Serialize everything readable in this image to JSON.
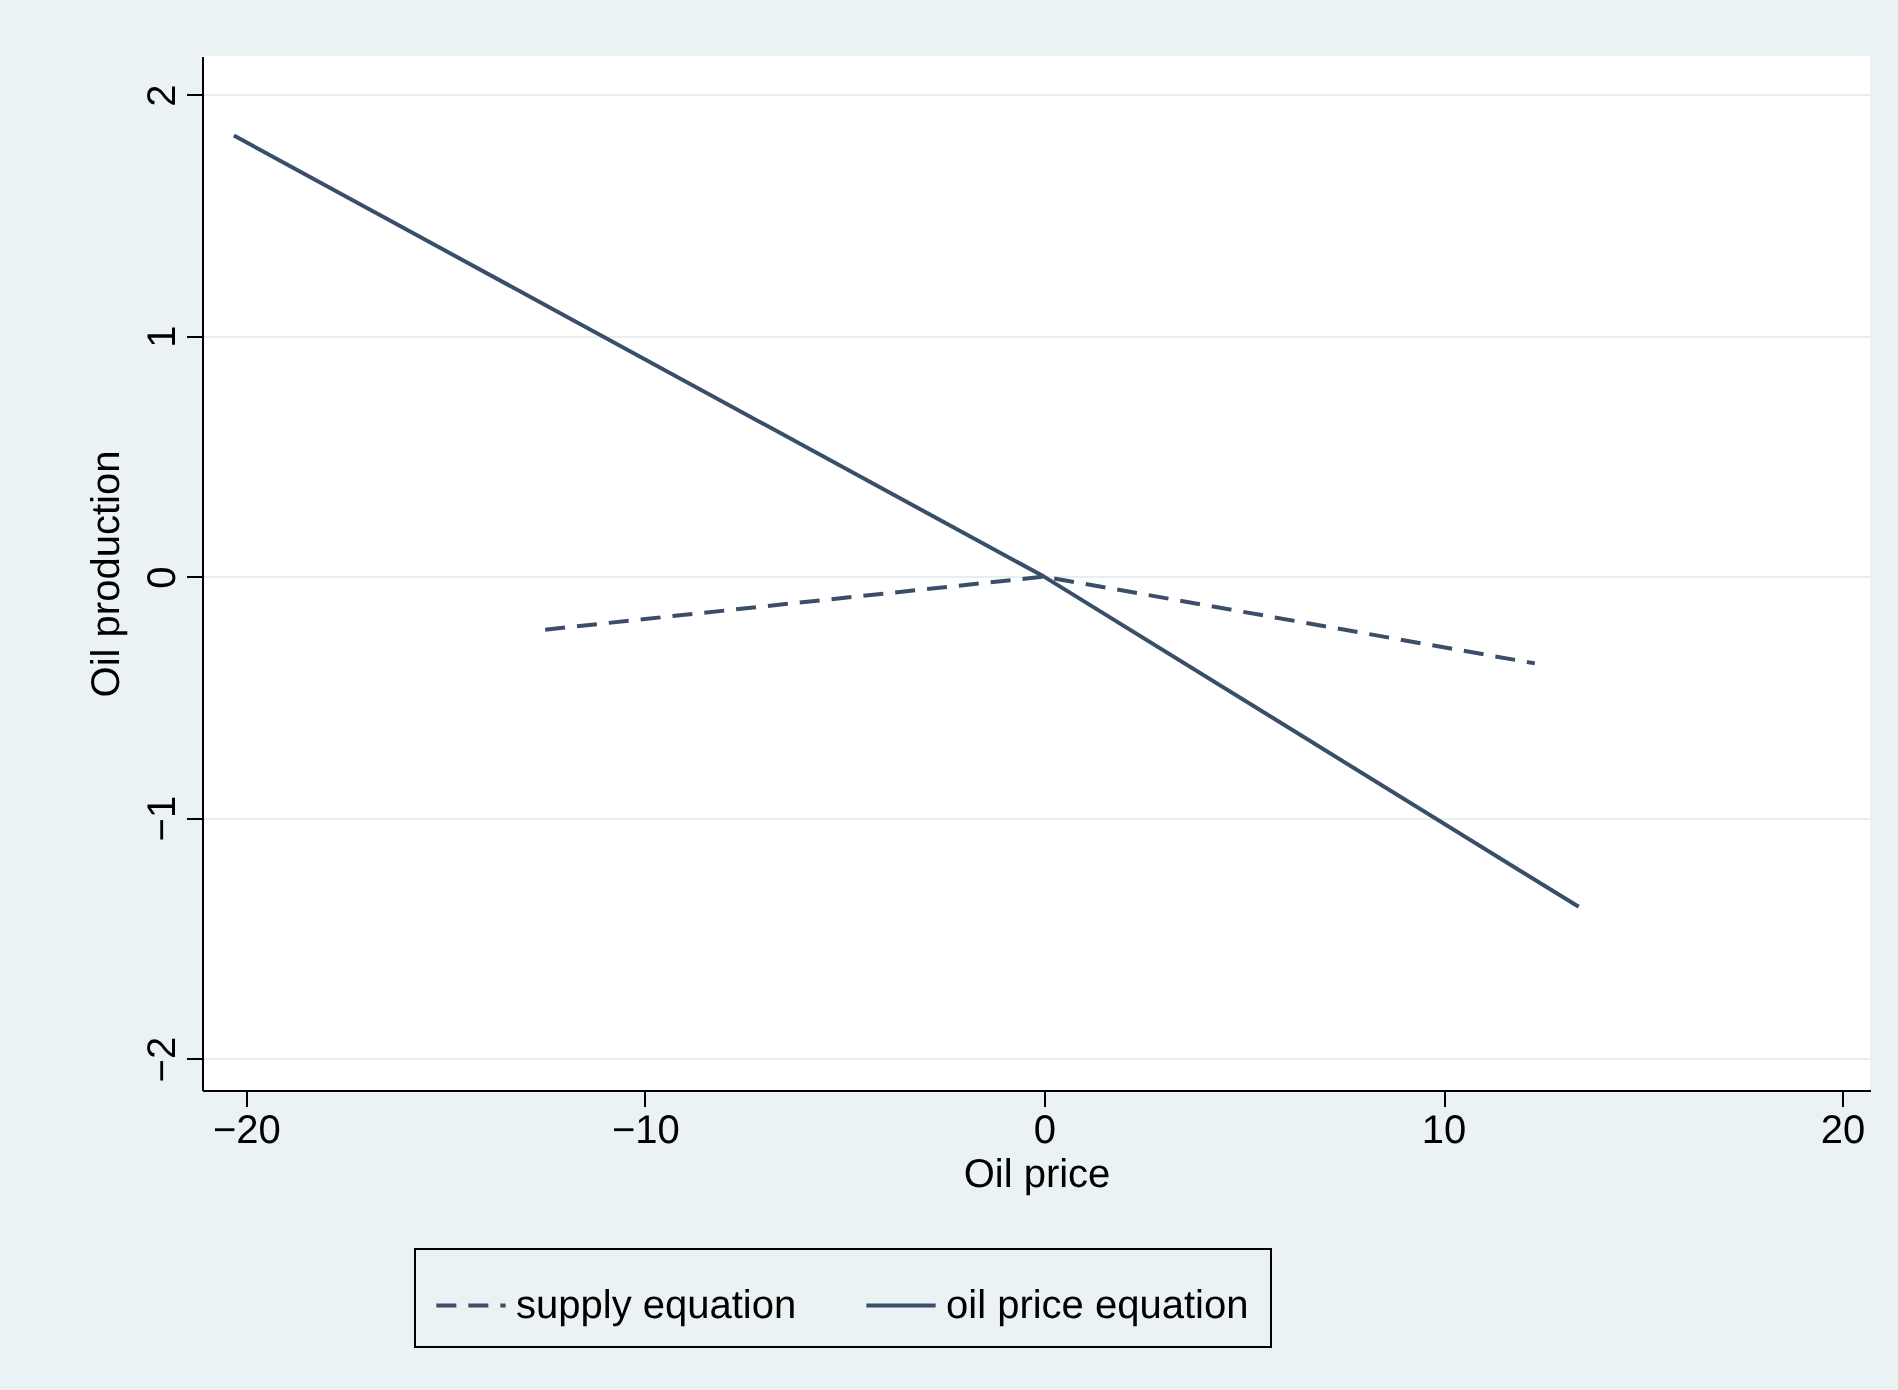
{
  "chart_data": {
    "type": "line",
    "xlabel": "Oil price",
    "ylabel": "Oil production",
    "series": [
      {
        "name": "supply equation",
        "color": "#3a4e6a",
        "line_style": "dashed",
        "x": [
          -12.5,
          0,
          12.3
        ],
        "values": [
          -0.22,
          0,
          -0.36
        ]
      },
      {
        "name": "oil price equation",
        "color": "#3a4e6a",
        "line_style": "solid",
        "x": [
          -20.3,
          0,
          13.4
        ],
        "values": [
          1.83,
          0,
          -1.37
        ]
      }
    ],
    "xlim": [
      -21.1,
      20.7
    ],
    "xticks": [
      -20,
      -10,
      0,
      10,
      20
    ],
    "ylim": [
      -2.13,
      2.16
    ],
    "yticks": [
      -2,
      -1,
      0,
      1,
      2
    ],
    "grid": "y",
    "legend": "bottom",
    "marker": "none"
  }
}
